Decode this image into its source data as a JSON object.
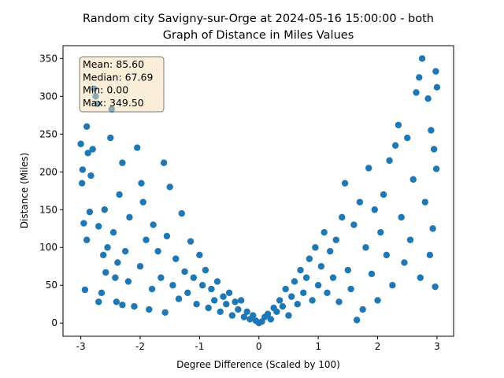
{
  "chart_data": {
    "type": "scatter",
    "title": [
      "Random city Savigny-sur-Orge at 2024-05-16 15:00:00  - both",
      "Graph of Distance in Miles Values"
    ],
    "xlabel": "Degree Difference (Scaled by 100)",
    "ylabel": "Distance (Miles)",
    "annotations": [
      "Mean: 85.60",
      "Median: 67.69",
      "Min: 0.00",
      "Max: 349.50"
    ],
    "color": "#1f77b4",
    "xlim": [
      -3.3,
      3.28
    ],
    "ylim": [
      -17.5,
      367
    ],
    "xticks": [
      -3,
      -2,
      -1,
      0,
      1,
      2,
      3
    ],
    "yticks": [
      0,
      50,
      100,
      150,
      200,
      250,
      300,
      350
    ],
    "x": [
      -3,
      -2.98,
      -2.97,
      -2.95,
      -2.93,
      -2.9,
      -2.9,
      -2.88,
      -2.85,
      -2.83,
      -2.8,
      -2.78,
      -2.75,
      -2.72,
      -2.7,
      -2.7,
      -2.65,
      -2.62,
      -2.6,
      -2.58,
      -2.55,
      -2.5,
      -2.48,
      -2.45,
      -2.42,
      -2.4,
      -2.38,
      -2.35,
      -2.3,
      -2.3,
      -2.25,
      -2.2,
      -2.18,
      -2.1,
      -2.05,
      -2.0,
      -1.98,
      -1.95,
      -1.9,
      -1.85,
      -1.8,
      -1.78,
      -1.7,
      -1.65,
      -1.6,
      -1.58,
      -1.55,
      -1.5,
      -1.45,
      -1.4,
      -1.35,
      -1.3,
      -1.25,
      -1.2,
      -1.15,
      -1.1,
      -1.05,
      -1.0,
      -0.95,
      -0.9,
      -0.85,
      -0.8,
      -0.75,
      -0.7,
      -0.65,
      -0.6,
      -0.55,
      -0.5,
      -0.45,
      -0.4,
      -0.35,
      -0.3,
      -0.25,
      -0.2,
      -0.15,
      -0.1,
      -0.05,
      0,
      0.05,
      0.1,
      0.15,
      0.2,
      0.25,
      0.3,
      0.35,
      0.4,
      0.45,
      0.5,
      0.55,
      0.6,
      0.65,
      0.7,
      0.75,
      0.8,
      0.85,
      0.9,
      0.95,
      1.0,
      1.05,
      1.1,
      1.15,
      1.2,
      1.25,
      1.3,
      1.35,
      1.4,
      1.45,
      1.5,
      1.55,
      1.6,
      1.65,
      1.7,
      1.75,
      1.8,
      1.85,
      1.9,
      1.95,
      2.0,
      2.05,
      2.1,
      2.15,
      2.2,
      2.25,
      2.3,
      2.35,
      2.4,
      2.45,
      2.5,
      2.55,
      2.6,
      2.65,
      2.7,
      2.72,
      2.75,
      2.8,
      2.85,
      2.88,
      2.9,
      2.95,
      2.97,
      2.98,
      3.0,
      2.99,
      2.93
    ],
    "y": [
      237,
      185,
      203,
      132,
      44,
      260,
      110,
      225,
      147,
      195,
      230,
      310,
      300,
      290,
      128,
      28,
      40,
      90,
      150,
      67,
      100,
      245,
      283,
      120,
      60,
      28,
      80,
      170,
      24,
      212,
      95,
      55,
      140,
      22,
      232,
      75,
      185,
      160,
      110,
      18,
      45,
      130,
      95,
      60,
      212,
      14,
      115,
      180,
      50,
      85,
      32,
      145,
      68,
      40,
      108,
      60,
      25,
      90,
      50,
      70,
      20,
      45,
      30,
      55,
      15,
      35,
      25,
      40,
      10,
      28,
      18,
      30,
      8,
      15,
      5,
      10,
      3,
      0,
      2,
      8,
      12,
      5,
      20,
      15,
      30,
      22,
      45,
      10,
      35,
      55,
      25,
      70,
      40,
      60,
      85,
      30,
      100,
      50,
      75,
      120,
      40,
      95,
      60,
      110,
      28,
      140,
      185,
      70,
      45,
      130,
      4,
      160,
      18,
      100,
      205,
      65,
      150,
      30,
      120,
      170,
      90,
      215,
      50,
      235,
      262,
      140,
      80,
      245,
      110,
      190,
      305,
      325,
      60,
      350,
      160,
      297,
      90,
      255,
      230,
      48,
      333,
      312,
      204,
      125
    ]
  }
}
